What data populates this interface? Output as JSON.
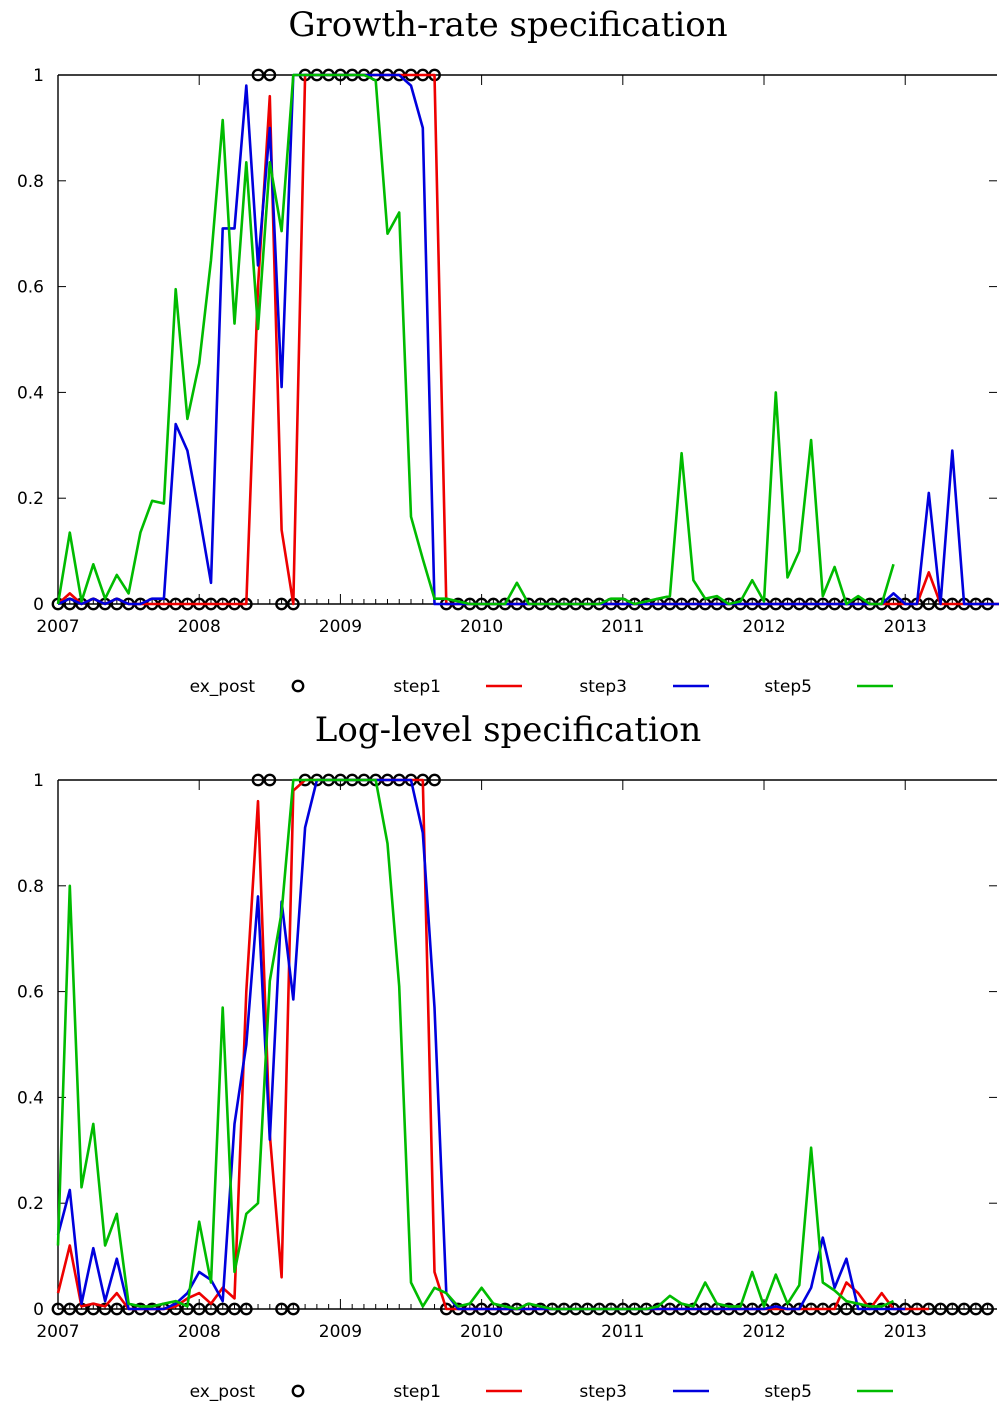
{
  "colors": {
    "ex_post": "#000000",
    "step1": "#ee0000",
    "step3": "#0000dd",
    "step5": "#00bb00"
  },
  "chart_data": [
    {
      "type": "line",
      "title": "Growth-rate specification",
      "xlim": [
        2007.0,
        2013.65
      ],
      "ylim": [
        0,
        1
      ],
      "x_ticks": [
        "2007",
        "2008",
        "2009",
        "2010",
        "2011",
        "2012",
        "2013"
      ],
      "y_ticks": [
        "0",
        "0.2",
        "0.4",
        "0.6",
        "0.8",
        "1"
      ],
      "legend": [
        "ex_post",
        "step1",
        "step3",
        "step5"
      ],
      "legend_position": "bottom",
      "grid": false,
      "series": [
        {
          "name": "ex_post",
          "marker": "circle",
          "start": 2007.0,
          "step": 0.0833333,
          "values": [
            0,
            0,
            0,
            0,
            0,
            0,
            0,
            0,
            0,
            0,
            0,
            0,
            0,
            0,
            0,
            0,
            0,
            1,
            1,
            0,
            0,
            1,
            1,
            1,
            1,
            1,
            1,
            1,
            1,
            1,
            1,
            1,
            1,
            0,
            0,
            0,
            0,
            0,
            0,
            0,
            0,
            0,
            0,
            0,
            0,
            0,
            0,
            0,
            0,
            0,
            0,
            0,
            0,
            0,
            0,
            0,
            0,
            0,
            0,
            0,
            0,
            0,
            0,
            0,
            0,
            0,
            0,
            0,
            0,
            0,
            0,
            0,
            0,
            0,
            0,
            0,
            0,
            0,
            0,
            0,
            0
          ]
        },
        {
          "name": "step1",
          "start": 2007.0,
          "step": 0.0833333,
          "values": [
            0,
            0.02,
            0,
            0.01,
            0,
            0.01,
            0,
            0,
            0,
            0,
            0,
            0,
            0,
            0,
            0,
            0,
            0,
            0.6,
            0.96,
            0.14,
            0,
            1,
            1,
            1,
            1,
            1,
            1,
            1,
            1,
            1,
            1,
            1,
            1,
            0,
            0,
            0,
            0,
            0,
            0,
            0,
            0,
            0,
            0,
            0,
            0,
            0,
            0,
            0,
            0,
            0,
            0,
            0,
            0,
            0,
            0,
            0,
            0,
            0,
            0,
            0,
            0,
            0,
            0,
            0,
            0,
            0,
            0,
            0,
            0,
            0,
            0,
            0,
            0,
            0,
            0.06,
            0,
            0,
            0,
            0,
            0,
            0
          ]
        },
        {
          "name": "step3",
          "start": 2007.0,
          "step": 0.0833333,
          "values": [
            0,
            0.01,
            0,
            0.01,
            0,
            0.01,
            0,
            0,
            0.01,
            0.01,
            0.34,
            0.29,
            0.17,
            0.04,
            0.71,
            0.71,
            0.98,
            0.64,
            0.9,
            0.41,
            1,
            1,
            1,
            1,
            1,
            1,
            1,
            1,
            1,
            1,
            0.98,
            0.9,
            0,
            0,
            0,
            0,
            0,
            0,
            0,
            0,
            0,
            0,
            0,
            0,
            0,
            0,
            0,
            0,
            0,
            0,
            0,
            0,
            0,
            0,
            0,
            0,
            0,
            0,
            0,
            0,
            0,
            0,
            0,
            0,
            0,
            0,
            0,
            0,
            0,
            0,
            0,
            0.02,
            0,
            0,
            0.21,
            0,
            0.29,
            0,
            0,
            0,
            0
          ]
        },
        {
          "name": "step5",
          "start": 2007.0,
          "step": 0.0833333,
          "values": [
            0,
            0.135,
            0.005,
            0.075,
            0.01,
            0.055,
            0.02,
            0.135,
            0.195,
            0.19,
            0.595,
            0.35,
            0.455,
            0.65,
            0.915,
            0.53,
            0.835,
            0.52,
            0.835,
            0.705,
            1,
            1,
            1,
            1,
            1,
            1,
            1,
            0.99,
            0.7,
            0.74,
            0.165,
            0.085,
            0.01,
            0.01,
            0.005,
            0,
            0,
            0,
            0,
            0.04,
            0,
            0,
            0,
            0,
            0,
            0,
            0,
            0.01,
            0.01,
            0,
            0.005,
            0.01,
            0.015,
            0.285,
            0.045,
            0.01,
            0.015,
            0,
            0.005,
            0.045,
            0.005,
            0.4,
            0.05,
            0.1,
            0.31,
            0.015,
            0.07,
            0,
            0.015,
            0,
            0,
            0.075
          ]
        }
      ]
    },
    {
      "type": "line",
      "title": "Log-level specification",
      "xlim": [
        2007.0,
        2013.65
      ],
      "ylim": [
        0,
        1
      ],
      "x_ticks": [
        "2007",
        "2008",
        "2009",
        "2010",
        "2011",
        "2012",
        "2013"
      ],
      "y_ticks": [
        "0",
        "0.2",
        "0.4",
        "0.6",
        "0.8",
        "1"
      ],
      "legend": [
        "ex_post",
        "step1",
        "step3",
        "step5"
      ],
      "legend_position": "bottom",
      "grid": false,
      "series": [
        {
          "name": "ex_post",
          "marker": "circle",
          "start": 2007.0,
          "step": 0.0833333,
          "values": [
            0,
            0,
            0,
            0,
            0,
            0,
            0,
            0,
            0,
            0,
            0,
            0,
            0,
            0,
            0,
            0,
            0,
            1,
            1,
            0,
            0,
            1,
            1,
            1,
            1,
            1,
            1,
            1,
            1,
            1,
            1,
            1,
            1,
            0,
            0,
            0,
            0,
            0,
            0,
            0,
            0,
            0,
            0,
            0,
            0,
            0,
            0,
            0,
            0,
            0,
            0,
            0,
            0,
            0,
            0,
            0,
            0,
            0,
            0,
            0,
            0,
            0,
            0,
            0,
            0,
            0,
            0,
            0,
            0,
            0,
            0,
            0,
            0,
            0,
            0,
            0,
            0,
            0,
            0,
            0,
            0
          ]
        },
        {
          "name": "step1",
          "start": 2007.0,
          "step": 0.0833333,
          "values": [
            0.03,
            0.12,
            0.005,
            0.01,
            0.005,
            0.03,
            0,
            0,
            0,
            0,
            0.005,
            0.02,
            0.03,
            0.01,
            0.04,
            0.02,
            0.6,
            0.96,
            0.33,
            0.06,
            0.98,
            1,
            1,
            1,
            1,
            1,
            1,
            1,
            1,
            1,
            1,
            1,
            0.07,
            0,
            0,
            0,
            0,
            0,
            0,
            0,
            0,
            0,
            0,
            0,
            0,
            0,
            0,
            0,
            0,
            0,
            0,
            0,
            0,
            0,
            0,
            0,
            0,
            0,
            0,
            0,
            0,
            0,
            0,
            0,
            0,
            0,
            0,
            0.05,
            0.03,
            0,
            0.03,
            0,
            0,
            0,
            0
          ]
        },
        {
          "name": "step3",
          "start": 2007.0,
          "step": 0.0833333,
          "values": [
            0.14,
            0.225,
            0.01,
            0.115,
            0.015,
            0.095,
            0,
            0,
            0,
            0,
            0.01,
            0.03,
            0.07,
            0.055,
            0.015,
            0.35,
            0.5,
            0.78,
            0.32,
            0.77,
            0.585,
            0.91,
            1,
            1,
            1,
            1,
            1,
            1,
            1,
            1,
            1,
            0.9,
            0.57,
            0.03,
            0,
            0,
            0,
            0,
            0,
            0,
            0,
            0,
            0,
            0,
            0,
            0,
            0,
            0,
            0,
            0,
            0,
            0,
            0,
            0,
            0,
            0,
            0,
            0,
            0,
            0,
            0,
            0.005,
            0,
            0,
            0.04,
            0.135,
            0.04,
            0.095,
            0,
            0,
            0,
            0,
            0
          ]
        },
        {
          "name": "step5",
          "start": 2007.0,
          "step": 0.0833333,
          "values": [
            0.12,
            0.8,
            0.23,
            0.35,
            0.12,
            0.18,
            0.01,
            0.005,
            0.005,
            0.01,
            0.015,
            0.005,
            0.165,
            0.05,
            0.57,
            0.07,
            0.18,
            0.2,
            0.62,
            0.75,
            1,
            1,
            1,
            1,
            1,
            1,
            1,
            1,
            0.88,
            0.61,
            0.05,
            0.005,
            0.04,
            0.03,
            0.005,
            0.01,
            0.04,
            0.01,
            0.005,
            0,
            0.01,
            0.005,
            0,
            0,
            0,
            0,
            0,
            0,
            0,
            0,
            0,
            0.005,
            0.025,
            0.01,
            0.005,
            0.05,
            0.01,
            0.005,
            0.005,
            0.07,
            0.005,
            0.065,
            0.01,
            0.045,
            0.305,
            0.05,
            0.035,
            0.015,
            0.01,
            0.005,
            0.005,
            0.015
          ]
        }
      ]
    }
  ]
}
